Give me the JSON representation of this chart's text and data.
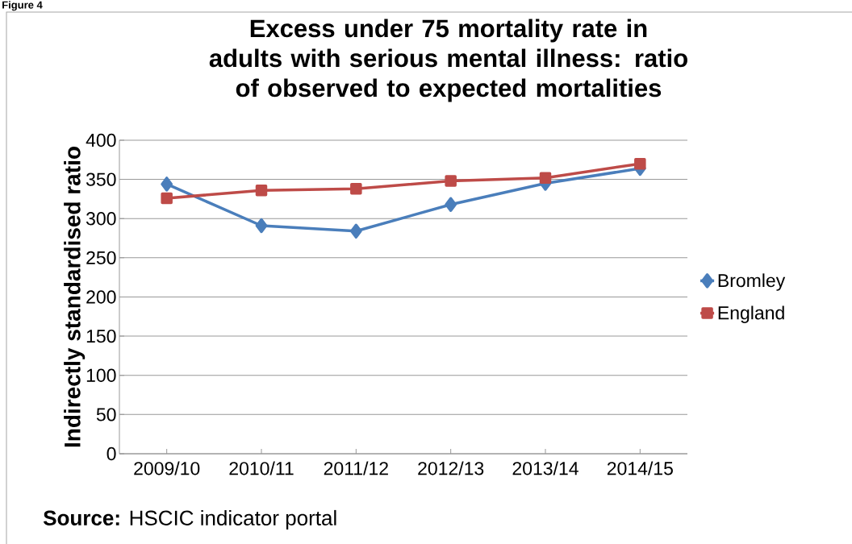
{
  "chart_data": {
    "type": "line",
    "title": "Excess under 75 mortality rate in adults with serious mental illness: ratio of observed to expected mortalities",
    "ylabel": "Indirectly standardised ratio",
    "categories": [
      "2009/10",
      "2010/11",
      "2011/12",
      "2012/13",
      "2013/14",
      "2014/15"
    ],
    "series": [
      {
        "name": "Bromley",
        "color": "#4a7ebb",
        "marker": "diamond",
        "values": [
          344,
          291,
          284,
          318,
          345,
          364
        ]
      },
      {
        "name": "England",
        "color": "#be4b48",
        "marker": "square",
        "values": [
          326,
          336,
          338,
          348,
          352,
          370
        ]
      }
    ],
    "ylim": [
      0,
      400
    ],
    "yticks": [
      0,
      50,
      100,
      150,
      200,
      250,
      300,
      350,
      400
    ],
    "grid": "y",
    "legend": "right",
    "line_style": "solid",
    "annotations": [
      "Figure 4",
      "**Source:** HSCIC indicator portal"
    ]
  }
}
